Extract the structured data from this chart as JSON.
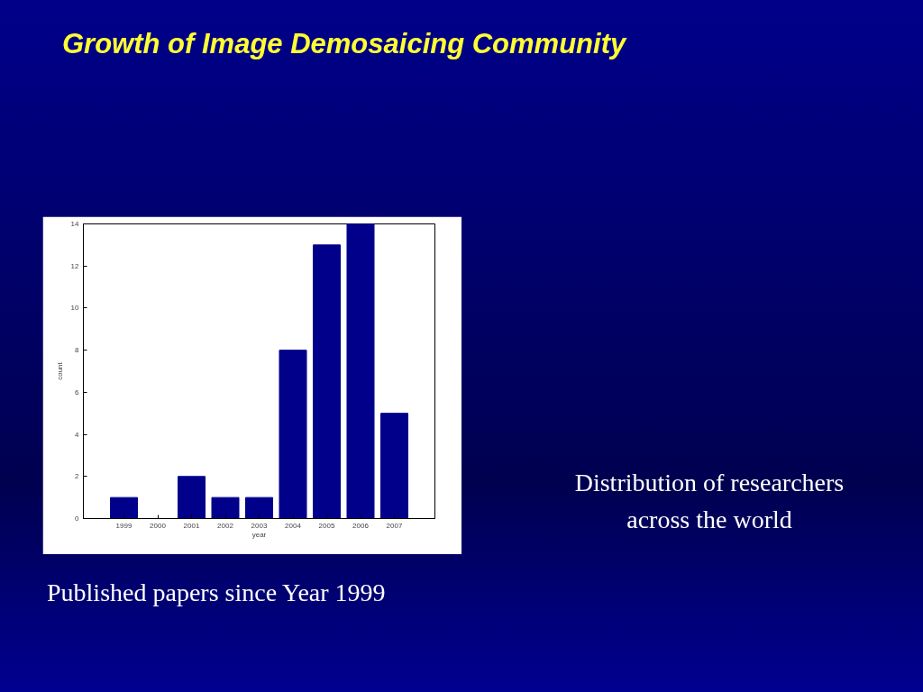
{
  "chart_data": {
    "type": "bar",
    "title": "Growth of Image Demosaicing Community",
    "categories": [
      "1999",
      "2000",
      "2001",
      "2002",
      "2003",
      "2004",
      "2005",
      "2006",
      "2007"
    ],
    "values": [
      1,
      0,
      2,
      1,
      1,
      8,
      13,
      14,
      5
    ],
    "color": "#00008b",
    "xlabel": "year",
    "ylabel": "count",
    "ylim": [
      0,
      14
    ],
    "yticks": [
      0,
      2,
      4,
      6,
      8,
      10,
      12,
      14
    ],
    "grid": false,
    "annotations": [
      "Published papers since Year 1999",
      "Distribution of researchers across the world"
    ]
  }
}
